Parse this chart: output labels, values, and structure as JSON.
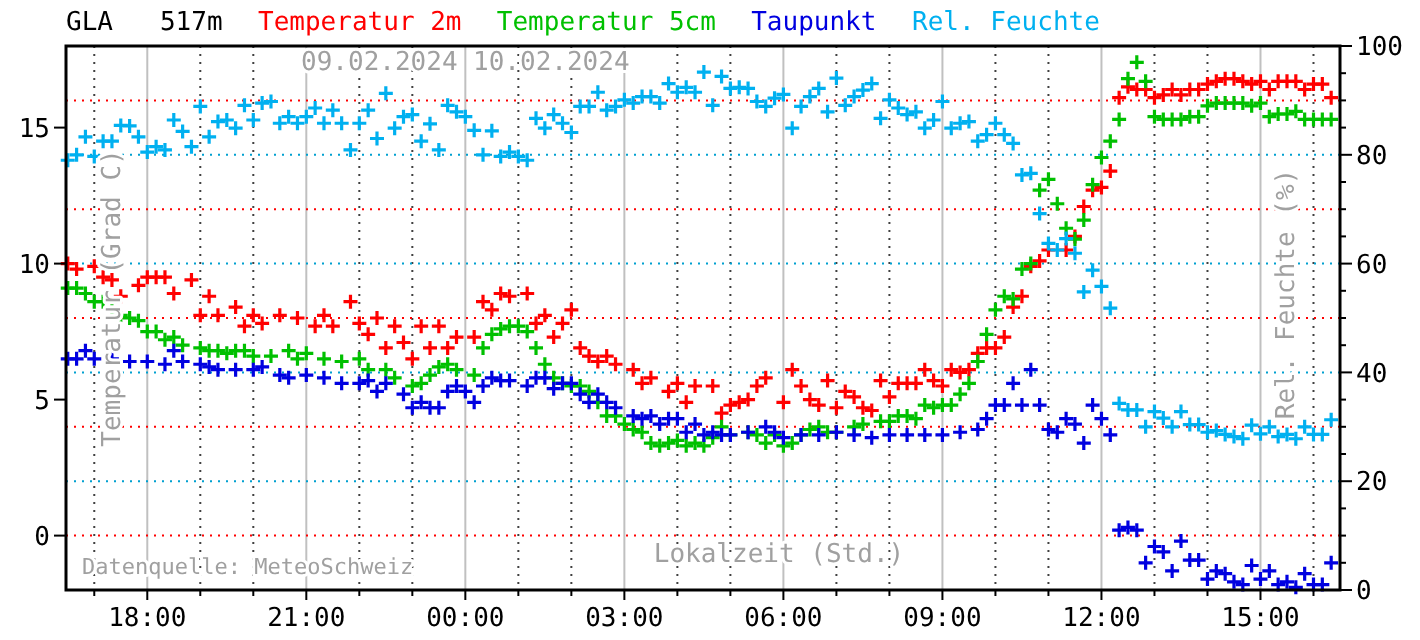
{
  "chart_data": {
    "type": "scatter",
    "title": "GLA   517m",
    "xlabel": "Lokalzeit (Std.)",
    "ylabel": "Temperatur (Grad C)",
    "y2label": "Rel. Feuchte (%)",
    "legend": "top",
    "grid": "x",
    "marker": "cross",
    "xlim": [
      "2024-02-09T16:28",
      "2024-02-10T16:30"
    ],
    "ylim": [
      -2,
      18
    ],
    "y2lim": [
      0,
      100
    ],
    "xticks": [
      {
        "value": "2024-02-09T17:00",
        "label": null
      },
      {
        "value": "2024-02-09T18:00",
        "label": "18:00"
      },
      {
        "value": "2024-02-09T19:00",
        "label": null
      },
      {
        "value": "2024-02-09T20:00",
        "label": null
      },
      {
        "value": "2024-02-09T21:00",
        "label": "21:00"
      },
      {
        "value": "2024-02-09T22:00",
        "label": null
      },
      {
        "value": "2024-02-09T23:00",
        "label": null
      },
      {
        "value": "2024-02-10T00:00",
        "label": "00:00"
      },
      {
        "value": "2024-02-10T01:00",
        "label": null
      },
      {
        "value": "2024-02-10T02:00",
        "label": null
      },
      {
        "value": "2024-02-10T03:00",
        "label": "03:00"
      },
      {
        "value": "2024-02-10T04:00",
        "label": null
      },
      {
        "value": "2024-02-10T05:00",
        "label": null
      },
      {
        "value": "2024-02-10T06:00",
        "label": "06:00"
      },
      {
        "value": "2024-02-10T07:00",
        "label": null
      },
      {
        "value": "2024-02-10T08:00",
        "label": null
      },
      {
        "value": "2024-02-10T09:00",
        "label": "09:00"
      },
      {
        "value": "2024-02-10T10:00",
        "label": null
      },
      {
        "value": "2024-02-10T11:00",
        "label": null
      },
      {
        "value": "2024-02-10T12:00",
        "label": "12:00"
      },
      {
        "value": "2024-02-10T13:00",
        "label": null
      },
      {
        "value": "2024-02-10T14:00",
        "label": null
      },
      {
        "value": "2024-02-10T15:00",
        "label": "15:00"
      },
      {
        "value": "2024-02-10T16:00",
        "label": null
      }
    ],
    "yticks": [
      0,
      5,
      10,
      15
    ],
    "y2ticks": [
      {
        "value": 0,
        "label": "0"
      },
      {
        "value": 5,
        "label": null
      },
      {
        "value": 10,
        "label": null
      },
      {
        "value": 15,
        "label": null
      },
      {
        "value": 20,
        "label": "20"
      },
      {
        "value": 25,
        "label": null
      },
      {
        "value": 30,
        "label": null
      },
      {
        "value": 35,
        "label": null
      },
      {
        "value": 40,
        "label": "40"
      },
      {
        "value": 45,
        "label": null
      },
      {
        "value": 50,
        "label": null
      },
      {
        "value": 55,
        "label": null
      },
      {
        "value": 60,
        "label": "60"
      },
      {
        "value": 65,
        "label": null
      },
      {
        "value": 70,
        "label": null
      },
      {
        "value": 75,
        "label": null
      },
      {
        "value": 80,
        "label": "80"
      },
      {
        "value": 85,
        "label": null
      },
      {
        "value": 90,
        "label": null
      },
      {
        "value": 95,
        "label": null
      },
      {
        "value": 100,
        "label": "100"
      }
    ],
    "ref_lines": [
      {
        "axis": "y2",
        "value": 10,
        "color": "#ff0000",
        "line_style": "dotted"
      },
      {
        "axis": "y2",
        "value": 20,
        "color": "#00a0d0",
        "line_style": "dotted"
      },
      {
        "axis": "y2",
        "value": 30,
        "color": "#ff0000",
        "line_style": "dotted"
      },
      {
        "axis": "y2",
        "value": 40,
        "color": "#00a0d0",
        "line_style": "dotted"
      },
      {
        "axis": "y2",
        "value": 50,
        "color": "#ff0000",
        "line_style": "dotted"
      },
      {
        "axis": "y2",
        "value": 60,
        "color": "#00a0d0",
        "line_style": "dotted"
      },
      {
        "axis": "y2",
        "value": 70,
        "color": "#ff0000",
        "line_style": "dotted"
      },
      {
        "axis": "y2",
        "value": 80,
        "color": "#00a0d0",
        "line_style": "dotted"
      },
      {
        "axis": "y2",
        "value": 90,
        "color": "#ff0000",
        "line_style": "dotted"
      }
    ],
    "annotations": [
      "09.02.2024",
      "10.02.2024",
      "Datenquelle: MeteoSchweiz"
    ],
    "x": [
      "2024-02-09T16:30",
      "2024-02-09T16:40",
      "2024-02-09T16:50",
      "2024-02-09T17:00",
      "2024-02-09T17:10",
      "2024-02-09T17:20",
      "2024-02-09T17:30",
      "2024-02-09T17:40",
      "2024-02-09T17:50",
      "2024-02-09T18:00",
      "2024-02-09T18:10",
      "2024-02-09T18:20",
      "2024-02-09T18:30",
      "2024-02-09T18:40",
      "2024-02-09T18:50",
      "2024-02-09T19:00",
      "2024-02-09T19:10",
      "2024-02-09T19:20",
      "2024-02-09T19:30",
      "2024-02-09T19:40",
      "2024-02-09T19:50",
      "2024-02-09T20:00",
      "2024-02-09T20:10",
      "2024-02-09T20:20",
      "2024-02-09T20:30",
      "2024-02-09T20:40",
      "2024-02-09T20:50",
      "2024-02-09T21:00",
      "2024-02-09T21:10",
      "2024-02-09T21:20",
      "2024-02-09T21:30",
      "2024-02-09T21:40",
      "2024-02-09T21:50",
      "2024-02-09T22:00",
      "2024-02-09T22:10",
      "2024-02-09T22:20",
      "2024-02-09T22:30",
      "2024-02-09T22:40",
      "2024-02-09T22:50",
      "2024-02-09T23:00",
      "2024-02-09T23:10",
      "2024-02-09T23:20",
      "2024-02-09T23:30",
      "2024-02-09T23:40",
      "2024-02-09T23:50",
      "2024-02-10T00:00",
      "2024-02-10T00:10",
      "2024-02-10T00:20",
      "2024-02-10T00:30",
      "2024-02-10T00:40",
      "2024-02-10T00:50",
      "2024-02-10T01:00",
      "2024-02-10T01:10",
      "2024-02-10T01:20",
      "2024-02-10T01:30",
      "2024-02-10T01:40",
      "2024-02-10T01:50",
      "2024-02-10T02:00",
      "2024-02-10T02:10",
      "2024-02-10T02:20",
      "2024-02-10T02:30",
      "2024-02-10T02:40",
      "2024-02-10T02:50",
      "2024-02-10T03:00",
      "2024-02-10T03:10",
      "2024-02-10T03:20",
      "2024-02-10T03:30",
      "2024-02-10T03:40",
      "2024-02-10T03:50",
      "2024-02-10T04:00",
      "2024-02-10T04:10",
      "2024-02-10T04:20",
      "2024-02-10T04:30",
      "2024-02-10T04:40",
      "2024-02-10T04:50",
      "2024-02-10T05:00",
      "2024-02-10T05:10",
      "2024-02-10T05:20",
      "2024-02-10T05:30",
      "2024-02-10T05:40",
      "2024-02-10T05:50",
      "2024-02-10T06:00",
      "2024-02-10T06:10",
      "2024-02-10T06:20",
      "2024-02-10T06:30",
      "2024-02-10T06:40",
      "2024-02-10T06:50",
      "2024-02-10T07:00",
      "2024-02-10T07:10",
      "2024-02-10T07:20",
      "2024-02-10T07:30",
      "2024-02-10T07:40",
      "2024-02-10T07:50",
      "2024-02-10T08:00",
      "2024-02-10T08:10",
      "2024-02-10T08:20",
      "2024-02-10T08:30",
      "2024-02-10T08:40",
      "2024-02-10T08:50",
      "2024-02-10T09:00",
      "2024-02-10T09:10",
      "2024-02-10T09:20",
      "2024-02-10T09:30",
      "2024-02-10T09:40",
      "2024-02-10T09:50",
      "2024-02-10T10:00",
      "2024-02-10T10:10",
      "2024-02-10T10:20",
      "2024-02-10T10:30",
      "2024-02-10T10:40",
      "2024-02-10T10:50",
      "2024-02-10T11:00",
      "2024-02-10T11:10",
      "2024-02-10T11:20",
      "2024-02-10T11:30",
      "2024-02-10T11:40",
      "2024-02-10T11:50",
      "2024-02-10T12:00",
      "2024-02-10T12:10",
      "2024-02-10T12:20",
      "2024-02-10T12:30",
      "2024-02-10T12:40",
      "2024-02-10T12:50",
      "2024-02-10T13:00",
      "2024-02-10T13:10",
      "2024-02-10T13:20",
      "2024-02-10T13:30",
      "2024-02-10T13:40",
      "2024-02-10T13:50",
      "2024-02-10T14:00",
      "2024-02-10T14:10",
      "2024-02-10T14:20",
      "2024-02-10T14:30",
      "2024-02-10T14:40",
      "2024-02-10T14:50",
      "2024-02-10T15:00",
      "2024-02-10T15:10",
      "2024-02-10T15:20",
      "2024-02-10T15:30",
      "2024-02-10T15:40",
      "2024-02-10T15:50",
      "2024-02-10T16:00",
      "2024-02-10T16:10",
      "2024-02-10T16:20"
    ],
    "series": [
      {
        "name": "Temperatur 2m",
        "color": "#ff0000",
        "x": [
          "2024-02-09T16:30",
          "2024-02-09T16:40",
          "2024-02-09T17:00",
          "2024-02-09T17:10",
          "2024-02-09T17:20",
          "2024-02-09T17:30",
          "2024-02-09T17:50",
          "2024-02-09T18:00",
          "2024-02-09T18:10",
          "2024-02-09T18:20",
          "2024-02-09T18:30",
          "2024-02-09T18:50",
          "2024-02-09T19:00",
          "2024-02-09T19:10",
          "2024-02-09T19:20",
          "2024-02-09T19:40",
          "2024-02-09T19:50",
          "2024-02-09T20:00",
          "2024-02-09T20:10",
          "2024-02-09T20:30",
          "2024-02-09T20:50",
          "2024-02-09T21:10",
          "2024-02-09T21:20",
          "2024-02-09T21:30",
          "2024-02-09T21:50",
          "2024-02-09T22:00",
          "2024-02-09T22:10",
          "2024-02-09T22:20",
          "2024-02-09T22:30",
          "2024-02-09T22:40",
          "2024-02-09T22:50",
          "2024-02-09T23:00",
          "2024-02-09T23:10",
          "2024-02-09T23:20",
          "2024-02-09T23:30",
          "2024-02-09T23:40",
          "2024-02-09T23:50",
          "2024-02-10T00:10",
          "2024-02-10T00:20",
          "2024-02-10T00:30",
          "2024-02-10T00:40",
          "2024-02-10T00:50",
          "2024-02-10T01:10",
          "2024-02-10T01:20",
          "2024-02-10T01:30",
          "2024-02-10T01:40",
          "2024-02-10T01:50",
          "2024-02-10T02:00",
          "2024-02-10T02:10",
          "2024-02-10T02:20",
          "2024-02-10T02:30",
          "2024-02-10T02:40",
          "2024-02-10T02:50",
          "2024-02-10T03:10",
          "2024-02-10T03:20",
          "2024-02-10T03:30",
          "2024-02-10T03:50",
          "2024-02-10T04:00",
          "2024-02-10T04:10",
          "2024-02-10T04:20",
          "2024-02-10T04:40",
          "2024-02-10T04:50",
          "2024-02-10T05:00",
          "2024-02-10T05:10",
          "2024-02-10T05:20",
          "2024-02-10T05:30",
          "2024-02-10T05:40",
          "2024-02-10T06:00",
          "2024-02-10T06:10",
          "2024-02-10T06:20",
          "2024-02-10T06:30",
          "2024-02-10T06:40",
          "2024-02-10T06:50",
          "2024-02-10T07:00",
          "2024-02-10T07:10",
          "2024-02-10T07:20",
          "2024-02-10T07:30",
          "2024-02-10T07:40",
          "2024-02-10T07:50",
          "2024-02-10T08:00",
          "2024-02-10T08:10",
          "2024-02-10T08:20",
          "2024-02-10T08:30",
          "2024-02-10T08:40",
          "2024-02-10T08:50",
          "2024-02-10T09:00",
          "2024-02-10T09:10",
          "2024-02-10T09:20",
          "2024-02-10T09:30",
          "2024-02-10T09:40",
          "2024-02-10T09:50",
          "2024-02-10T10:00",
          "2024-02-10T10:10",
          "2024-02-10T10:20",
          "2024-02-10T10:30",
          "2024-02-10T10:40",
          "2024-02-10T10:50",
          "2024-02-10T11:00",
          "2024-02-10T11:20",
          "2024-02-10T11:30",
          "2024-02-10T11:40",
          "2024-02-10T11:50",
          "2024-02-10T12:00",
          "2024-02-10T12:10",
          "2024-02-10T12:20",
          "2024-02-10T12:30",
          "2024-02-10T12:40",
          "2024-02-10T12:50",
          "2024-02-10T13:00",
          "2024-02-10T13:10",
          "2024-02-10T13:20",
          "2024-02-10T13:30",
          "2024-02-10T13:40",
          "2024-02-10T13:50",
          "2024-02-10T14:00",
          "2024-02-10T14:10",
          "2024-02-10T14:20",
          "2024-02-10T14:30",
          "2024-02-10T14:40",
          "2024-02-10T14:50",
          "2024-02-10T15:00",
          "2024-02-10T15:10",
          "2024-02-10T15:20",
          "2024-02-10T15:30",
          "2024-02-10T15:40",
          "2024-02-10T15:50",
          "2024-02-10T16:00",
          "2024-02-10T16:10",
          "2024-02-10T16:20"
        ],
        "values": [
          10.0,
          9.8,
          9.9,
          9.5,
          9.4,
          8.8,
          9.2,
          9.5,
          9.5,
          9.5,
          8.9,
          9.4,
          8.1,
          8.8,
          8.1,
          8.4,
          7.7,
          8.1,
          7.8,
          8.1,
          8.0,
          7.7,
          8.1,
          7.7,
          8.6,
          7.8,
          7.4,
          8.0,
          6.9,
          7.7,
          7.1,
          6.5,
          7.7,
          6.9,
          7.7,
          6.9,
          7.3,
          7.3,
          8.6,
          8.3,
          8.9,
          8.8,
          8.9,
          7.8,
          8.1,
          7.3,
          7.8,
          8.3,
          6.9,
          6.6,
          6.4,
          6.6,
          6.3,
          6.1,
          5.6,
          5.8,
          5.3,
          5.6,
          4.9,
          5.5,
          5.5,
          4.5,
          4.8,
          4.9,
          5.0,
          5.5,
          5.8,
          4.9,
          6.1,
          5.5,
          5.0,
          4.8,
          5.7,
          4.7,
          5.3,
          5.1,
          4.7,
          4.6,
          5.7,
          5.1,
          5.6,
          5.6,
          5.6,
          6.1,
          5.7,
          5.5,
          6.1,
          6.0,
          6.1,
          6.7,
          6.9,
          6.9,
          7.3,
          8.4,
          8.8,
          9.9,
          10.1,
          10.5,
          10.5,
          11.0,
          12.1,
          12.7,
          12.8,
          13.4,
          16.1,
          16.5,
          16.4,
          16.4,
          16.1,
          16.2,
          16.4,
          16.2,
          16.4,
          16.4,
          16.6,
          16.7,
          16.8,
          16.8,
          16.7,
          16.6,
          16.7,
          16.4,
          16.7,
          16.7,
          16.7,
          16.4,
          16.6,
          16.6,
          16.1
        ]
      },
      {
        "name": "Temperatur 5cm",
        "color": "#00c000",
        "x": [
          "2024-02-09T16:30",
          "2024-02-09T16:40",
          "2024-02-09T16:50",
          "2024-02-09T17:00",
          "2024-02-09T17:10",
          "2024-02-09T17:20",
          "2024-02-09T17:30",
          "2024-02-09T17:40",
          "2024-02-09T17:50",
          "2024-02-09T18:00",
          "2024-02-09T18:10",
          "2024-02-09T18:20",
          "2024-02-09T18:30",
          "2024-02-09T18:40",
          "2024-02-09T19:00",
          "2024-02-09T19:10",
          "2024-02-09T19:20",
          "2024-02-09T19:30",
          "2024-02-09T19:40",
          "2024-02-09T19:50",
          "2024-02-09T20:00",
          "2024-02-09T20:20",
          "2024-02-09T20:40",
          "2024-02-09T20:50",
          "2024-02-09T21:00",
          "2024-02-09T21:20",
          "2024-02-09T21:40",
          "2024-02-09T22:00",
          "2024-02-09T22:10",
          "2024-02-09T22:30",
          "2024-02-09T22:40",
          "2024-02-09T23:00",
          "2024-02-09T23:10",
          "2024-02-09T23:20",
          "2024-02-09T23:30",
          "2024-02-09T23:40",
          "2024-02-09T23:50",
          "2024-02-10T00:10",
          "2024-02-10T00:20",
          "2024-02-10T00:30",
          "2024-02-10T00:40",
          "2024-02-10T00:50",
          "2024-02-10T01:00",
          "2024-02-10T01:10",
          "2024-02-10T01:20",
          "2024-02-10T01:30",
          "2024-02-10T01:40",
          "2024-02-10T01:50",
          "2024-02-10T02:00",
          "2024-02-10T02:10",
          "2024-02-10T02:20",
          "2024-02-10T02:30",
          "2024-02-10T02:40",
          "2024-02-10T02:50",
          "2024-02-10T03:00",
          "2024-02-10T03:10",
          "2024-02-10T03:20",
          "2024-02-10T03:30",
          "2024-02-10T03:40",
          "2024-02-10T03:50",
          "2024-02-10T04:00",
          "2024-02-10T04:10",
          "2024-02-10T04:20",
          "2024-02-10T04:30",
          "2024-02-10T04:40",
          "2024-02-10T04:50",
          "2024-02-10T05:00",
          "2024-02-10T05:20",
          "2024-02-10T05:30",
          "2024-02-10T05:40",
          "2024-02-10T05:50",
          "2024-02-10T06:00",
          "2024-02-10T06:10",
          "2024-02-10T06:20",
          "2024-02-10T06:30",
          "2024-02-10T06:40",
          "2024-02-10T06:50",
          "2024-02-10T07:00",
          "2024-02-10T07:20",
          "2024-02-10T07:30",
          "2024-02-10T07:50",
          "2024-02-10T08:00",
          "2024-02-10T08:10",
          "2024-02-10T08:20",
          "2024-02-10T08:30",
          "2024-02-10T08:40",
          "2024-02-10T08:50",
          "2024-02-10T09:00",
          "2024-02-10T09:10",
          "2024-02-10T09:20",
          "2024-02-10T09:30",
          "2024-02-10T09:40",
          "2024-02-10T09:50",
          "2024-02-10T10:00",
          "2024-02-10T10:10",
          "2024-02-10T10:20",
          "2024-02-10T10:30",
          "2024-02-10T10:40",
          "2024-02-10T10:50",
          "2024-02-10T11:00",
          "2024-02-10T11:10",
          "2024-02-10T11:20",
          "2024-02-10T11:30",
          "2024-02-10T11:40",
          "2024-02-10T11:50",
          "2024-02-10T12:00",
          "2024-02-10T12:10",
          "2024-02-10T12:20",
          "2024-02-10T12:30",
          "2024-02-10T12:40",
          "2024-02-10T12:50",
          "2024-02-10T13:00",
          "2024-02-10T13:10",
          "2024-02-10T13:20",
          "2024-02-10T13:30",
          "2024-02-10T13:40",
          "2024-02-10T13:50",
          "2024-02-10T14:00",
          "2024-02-10T14:10",
          "2024-02-10T14:20",
          "2024-02-10T14:30",
          "2024-02-10T14:40",
          "2024-02-10T14:50",
          "2024-02-10T15:00",
          "2024-02-10T15:10",
          "2024-02-10T15:20",
          "2024-02-10T15:30",
          "2024-02-10T15:40",
          "2024-02-10T15:50",
          "2024-02-10T16:00",
          "2024-02-10T16:10",
          "2024-02-10T16:20"
        ],
        "values": [
          9.1,
          9.1,
          8.9,
          8.6,
          8.6,
          8.3,
          8.1,
          8.0,
          7.9,
          7.5,
          7.5,
          7.2,
          7.3,
          7.0,
          6.9,
          6.8,
          6.8,
          6.7,
          6.8,
          6.8,
          6.6,
          6.6,
          6.8,
          6.5,
          6.7,
          6.5,
          6.4,
          6.5,
          6.1,
          6.1,
          5.8,
          5.5,
          5.6,
          5.9,
          6.2,
          6.3,
          6.1,
          5.9,
          6.9,
          7.4,
          7.6,
          7.7,
          7.7,
          7.5,
          6.9,
          6.3,
          5.8,
          5.6,
          5.5,
          5.5,
          5.3,
          4.9,
          4.4,
          4.4,
          4.1,
          3.9,
          3.8,
          3.4,
          3.3,
          3.4,
          3.5,
          3.3,
          3.4,
          3.3,
          3.6,
          4.0,
          3.7,
          3.8,
          3.7,
          3.4,
          3.7,
          3.3,
          3.4,
          3.7,
          3.9,
          4.0,
          3.8,
          3.8,
          4.0,
          4.1,
          4.2,
          4.2,
          4.4,
          4.4,
          4.3,
          4.8,
          4.7,
          4.8,
          4.8,
          5.2,
          5.6,
          6.4,
          7.4,
          8.3,
          8.8,
          8.7,
          9.8,
          10.0,
          12.7,
          13.1,
          12.2,
          11.3,
          10.9,
          11.6,
          12.9,
          13.9,
          14.5,
          15.3,
          16.8,
          17.4,
          16.7,
          15.4,
          15.3,
          15.3,
          15.3,
          15.4,
          15.4,
          15.8,
          15.9,
          15.9,
          15.9,
          15.9,
          15.8,
          15.9,
          15.4,
          15.5,
          15.5,
          15.6,
          15.3,
          15.3,
          15.3,
          15.3
        ]
      },
      {
        "name": "Taupunkt",
        "color": "#0000e0",
        "x": [
          "2024-02-09T16:30",
          "2024-02-09T16:40",
          "2024-02-09T16:50",
          "2024-02-09T17:00",
          "2024-02-09T17:20",
          "2024-02-09T17:40",
          "2024-02-09T18:00",
          "2024-02-09T18:20",
          "2024-02-09T18:30",
          "2024-02-09T18:40",
          "2024-02-09T19:00",
          "2024-02-09T19:10",
          "2024-02-09T19:20",
          "2024-02-09T19:40",
          "2024-02-09T20:00",
          "2024-02-09T20:10",
          "2024-02-09T20:30",
          "2024-02-09T20:40",
          "2024-02-09T21:00",
          "2024-02-09T21:20",
          "2024-02-09T21:40",
          "2024-02-09T22:00",
          "2024-02-09T22:10",
          "2024-02-09T22:20",
          "2024-02-09T22:30",
          "2024-02-09T22:50",
          "2024-02-09T23:00",
          "2024-02-09T23:10",
          "2024-02-09T23:20",
          "2024-02-09T23:30",
          "2024-02-09T23:40",
          "2024-02-09T23:50",
          "2024-02-10T00:00",
          "2024-02-10T00:10",
          "2024-02-10T00:20",
          "2024-02-10T00:30",
          "2024-02-10T00:40",
          "2024-02-10T00:50",
          "2024-02-10T01:10",
          "2024-02-10T01:20",
          "2024-02-10T01:30",
          "2024-02-10T01:40",
          "2024-02-10T01:50",
          "2024-02-10T02:00",
          "2024-02-10T02:10",
          "2024-02-10T02:20",
          "2024-02-10T02:30",
          "2024-02-10T02:40",
          "2024-02-10T02:50",
          "2024-02-10T03:10",
          "2024-02-10T03:20",
          "2024-02-10T03:30",
          "2024-02-10T03:40",
          "2024-02-10T03:50",
          "2024-02-10T04:00",
          "2024-02-10T04:10",
          "2024-02-10T04:20",
          "2024-02-10T04:30",
          "2024-02-10T04:40",
          "2024-02-10T04:50",
          "2024-02-10T05:00",
          "2024-02-10T05:20",
          "2024-02-10T05:40",
          "2024-02-10T05:50",
          "2024-02-10T06:00",
          "2024-02-10T06:20",
          "2024-02-10T06:40",
          "2024-02-10T07:00",
          "2024-02-10T07:20",
          "2024-02-10T07:40",
          "2024-02-10T08:00",
          "2024-02-10T08:20",
          "2024-02-10T08:40",
          "2024-02-10T09:00",
          "2024-02-10T09:20",
          "2024-02-10T09:40",
          "2024-02-10T09:50",
          "2024-02-10T10:00",
          "2024-02-10T10:10",
          "2024-02-10T10:20",
          "2024-02-10T10:30",
          "2024-02-10T10:40",
          "2024-02-10T10:50",
          "2024-02-10T11:00",
          "2024-02-10T11:10",
          "2024-02-10T11:20",
          "2024-02-10T11:30",
          "2024-02-10T11:40",
          "2024-02-10T11:50",
          "2024-02-10T12:00",
          "2024-02-10T12:10",
          "2024-02-10T12:20",
          "2024-02-10T12:30",
          "2024-02-10T12:40",
          "2024-02-10T12:50",
          "2024-02-10T13:00",
          "2024-02-10T13:10",
          "2024-02-10T13:20",
          "2024-02-10T13:30",
          "2024-02-10T13:40",
          "2024-02-10T13:50",
          "2024-02-10T14:00",
          "2024-02-10T14:10",
          "2024-02-10T14:20",
          "2024-02-10T14:30",
          "2024-02-10T14:40",
          "2024-02-10T14:50",
          "2024-02-10T15:00",
          "2024-02-10T15:10",
          "2024-02-10T15:20",
          "2024-02-10T15:30",
          "2024-02-10T15:40",
          "2024-02-10T15:50",
          "2024-02-10T16:00",
          "2024-02-10T16:10",
          "2024-02-10T16:20"
        ],
        "values": [
          6.5,
          6.5,
          6.8,
          6.5,
          6.5,
          6.4,
          6.4,
          6.3,
          6.8,
          6.4,
          6.3,
          6.2,
          6.1,
          6.1,
          6.1,
          6.2,
          5.9,
          5.8,
          5.9,
          5.8,
          5.6,
          5.6,
          5.7,
          5.3,
          5.6,
          5.2,
          4.7,
          4.9,
          4.7,
          4.7,
          5.3,
          5.5,
          5.3,
          4.9,
          5.5,
          5.8,
          5.7,
          5.7,
          5.5,
          5.8,
          5.8,
          5.4,
          5.6,
          5.6,
          5.2,
          4.9,
          5.2,
          4.9,
          4.7,
          4.4,
          4.3,
          4.4,
          4.1,
          4.3,
          4.3,
          3.8,
          4.1,
          3.7,
          3.8,
          3.7,
          3.7,
          3.8,
          4.0,
          3.8,
          3.6,
          3.7,
          3.7,
          3.8,
          3.7,
          3.6,
          3.7,
          3.7,
          3.7,
          3.7,
          3.8,
          3.9,
          4.3,
          4.8,
          4.8,
          5.6,
          4.8,
          6.1,
          4.8,
          3.9,
          3.8,
          4.3,
          4.1,
          3.4,
          4.8,
          4.3,
          3.7,
          0.2,
          0.3,
          0.2,
          -1.0,
          -0.4,
          -0.6,
          -1.3,
          -0.2,
          -0.9,
          -0.9,
          -1.6,
          -1.3,
          -1.4,
          -1.7,
          -1.8,
          -1.1,
          -1.6,
          -1.3,
          -1.8,
          -1.7,
          -1.9,
          -1.4,
          -1.8,
          -1.8,
          -1.0
        ]
      },
      {
        "name": "Rel. Feuchte",
        "color": "#00b0f0",
        "axis": "y2",
        "values": [
          79.0,
          80.0,
          83.3,
          79.7,
          82.5,
          82.5,
          85.4,
          85.3,
          83.3,
          80.5,
          81.5,
          80.9,
          86.4,
          84.3,
          81.5,
          88.9,
          83.3,
          86.1,
          86.4,
          84.9,
          89.1,
          86.4,
          89.5,
          89.8,
          85.8,
          87.0,
          85.8,
          87.0,
          88.6,
          85.8,
          88.2,
          85.8,
          80.9,
          85.8,
          88.2,
          83.0,
          91.3,
          84.9,
          87.0,
          87.4,
          82.5,
          85.7,
          80.9,
          89.1,
          87.9,
          87.0,
          84.5,
          80.0,
          84.4,
          79.7,
          80.5,
          79.7,
          79.0,
          86.7,
          84.9,
          87.4,
          85.8,
          84.1,
          88.9,
          88.9,
          91.5,
          88.2,
          88.9,
          90.1,
          89.5,
          90.7,
          90.7,
          89.5,
          93.1,
          91.5,
          92.4,
          91.5,
          95.2,
          89.1,
          94.4,
          92.2,
          92.4,
          92.2,
          89.8,
          88.9,
          90.4,
          91.1,
          84.9,
          88.9,
          90.7,
          92.2,
          87.9,
          94.1,
          89.1,
          90.7,
          91.9,
          93.1,
          86.7,
          90.1,
          88.6,
          87.4,
          87.9,
          84.9,
          86.4,
          89.8,
          84.9,
          85.8,
          86.1,
          82.5,
          83.7,
          85.8,
          83.7,
          82.1,
          76.3,
          76.6,
          69.2,
          63.7,
          62.5,
          64.6,
          61.9,
          54.8,
          58.8,
          55.8,
          51.8,
          34.3,
          33.1,
          33.1,
          30.0,
          32.8,
          31.6,
          30.0,
          32.8,
          30.4,
          30.4,
          29.0,
          29.3,
          28.6,
          28.2,
          27.8,
          30.3,
          28.7,
          30.0,
          28.2,
          28.6,
          27.8,
          30.0,
          28.6,
          28.6,
          31.3
        ]
      }
    ]
  }
}
